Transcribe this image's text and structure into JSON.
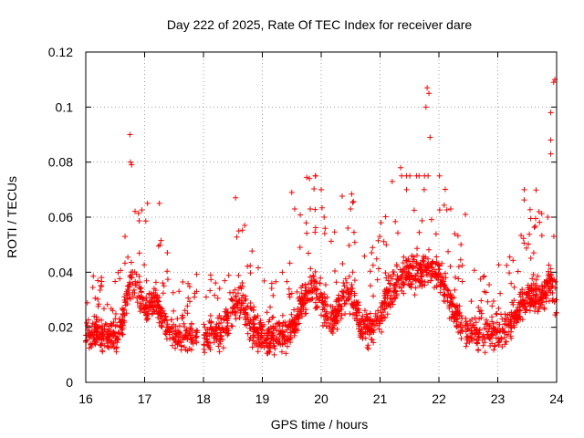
{
  "chart_data": {
    "type": "scatter",
    "title": "Day 222 of 2025, Rate Of TEC Index for receiver dare",
    "xlabel": "GPS time / hours",
    "ylabel": "ROTI / TECUs",
    "xlim": [
      16,
      24
    ],
    "ylim": [
      0,
      0.12
    ],
    "x_ticks": [
      "16",
      "17",
      "18",
      "19",
      "20",
      "21",
      "22",
      "23",
      "24"
    ],
    "y_ticks": [
      "0",
      "0.02",
      "0.04",
      "0.06",
      "0.08",
      "0.1",
      "0.12"
    ],
    "grid": true,
    "marker": "+",
    "color": "#ff0000",
    "data_gaps_hours": [
      [
        17.9,
        18.0
      ],
      [
        22.4,
        22.45
      ]
    ],
    "spikes": [
      {
        "x": 16.75,
        "y": 0.09
      },
      {
        "x": 16.76,
        "y": 0.08
      },
      {
        "x": 16.78,
        "y": 0.079
      },
      {
        "x": 17.05,
        "y": 0.065
      },
      {
        "x": 17.25,
        "y": 0.065
      },
      {
        "x": 18.6,
        "y": 0.055
      },
      {
        "x": 18.7,
        "y": 0.057
      },
      {
        "x": 19.5,
        "y": 0.069
      },
      {
        "x": 19.55,
        "y": 0.063
      },
      {
        "x": 19.8,
        "y": 0.074
      },
      {
        "x": 19.9,
        "y": 0.075
      },
      {
        "x": 20.0,
        "y": 0.07
      },
      {
        "x": 20.05,
        "y": 0.06
      },
      {
        "x": 20.5,
        "y": 0.063
      },
      {
        "x": 21.35,
        "y": 0.078
      },
      {
        "x": 21.45,
        "y": 0.07
      },
      {
        "x": 21.8,
        "y": 0.107
      },
      {
        "x": 21.83,
        "y": 0.105
      },
      {
        "x": 21.78,
        "y": 0.1
      },
      {
        "x": 21.85,
        "y": 0.089
      },
      {
        "x": 21.75,
        "y": 0.07
      },
      {
        "x": 22.2,
        "y": 0.063
      },
      {
        "x": 22.45,
        "y": 0.061
      },
      {
        "x": 23.45,
        "y": 0.07
      },
      {
        "x": 23.7,
        "y": 0.062
      },
      {
        "x": 23.85,
        "y": 0.06
      },
      {
        "x": 23.9,
        "y": 0.083
      },
      {
        "x": 23.9,
        "y": 0.088
      },
      {
        "x": 23.9,
        "y": 0.098
      },
      {
        "x": 23.95,
        "y": 0.109
      },
      {
        "x": 23.97,
        "y": 0.11
      }
    ],
    "background_band": {
      "x_range": [
        16.0,
        24.0
      ],
      "typical_y_range": [
        0.005,
        0.035
      ],
      "density_points": 2200
    }
  }
}
